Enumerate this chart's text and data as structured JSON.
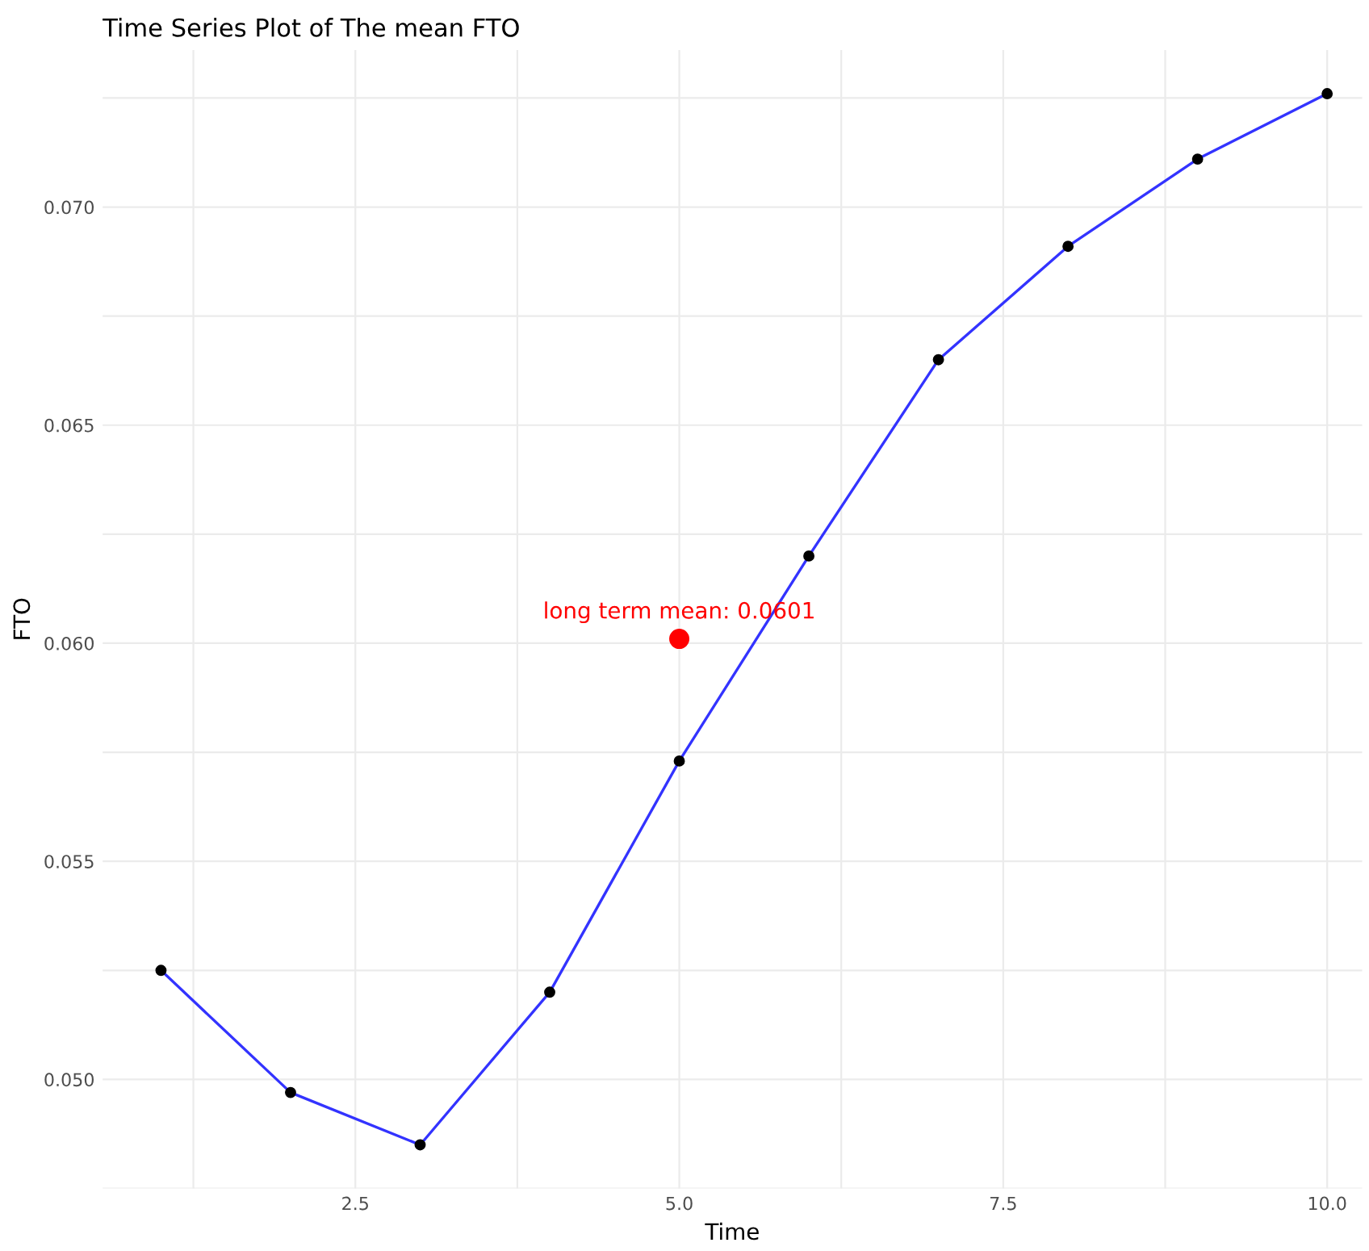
{
  "chart_data": {
    "type": "line",
    "title": "Time Series Plot of The mean FTO",
    "xlabel": "Time",
    "ylabel": "FTO",
    "xlim": [
      0.55,
      10.27
    ],
    "ylim": [
      0.0475,
      0.0736
    ],
    "xticks": [
      {
        "value": 1.25,
        "label": null
      },
      2.5,
      {
        "value": 3.75,
        "label": null
      },
      "5.0",
      {
        "value": 6.25,
        "label": null
      },
      7.5,
      {
        "value": 8.75,
        "label": null
      },
      "10.0"
    ],
    "yticks": [
      {
        "value": 0.0475,
        "label": null
      },
      "0.050",
      {
        "value": 0.0525,
        "label": null
      },
      0.055,
      {
        "value": 0.0575,
        "label": null
      },
      "0.060",
      {
        "value": 0.0625,
        "label": null
      },
      0.065,
      {
        "value": 0.0675,
        "label": null
      },
      "0.070",
      {
        "value": 0.0725,
        "label": null
      }
    ],
    "grid": true,
    "series": [
      {
        "color": "#3333ff",
        "marker": "circle",
        "x": [
          1,
          2,
          3,
          4,
          5,
          6,
          7,
          8,
          9,
          10
        ],
        "values": [
          0.0525,
          0.0497,
          0.0485,
          0.052,
          0.0573,
          0.062,
          0.0665,
          0.0691,
          0.0711,
          0.0726
        ]
      },
      {
        "type": "scatter",
        "color": "#ff0000",
        "marker": "circle",
        "x": [
          5
        ],
        "values": [
          0.0601
        ]
      }
    ],
    "annotations": [
      {
        "text": "long term mean: 0.0601",
        "x": 5,
        "y": 0.0601
      }
    ]
  }
}
